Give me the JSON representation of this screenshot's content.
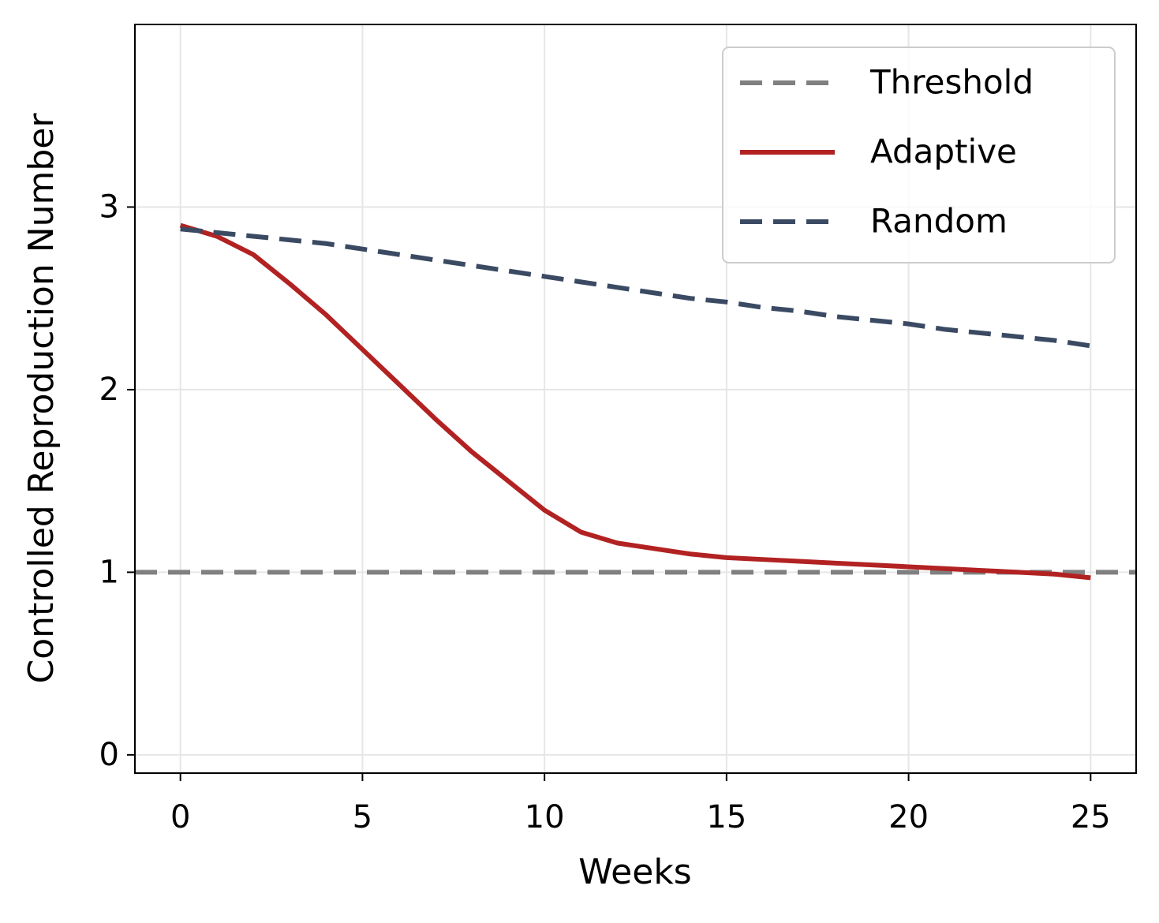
{
  "chart_data": {
    "type": "line",
    "x_label": "Weeks",
    "y_label": "Controlled Reproduction Number",
    "x": [
      0,
      1,
      2,
      3,
      4,
      5,
      6,
      7,
      8,
      9,
      10,
      11,
      12,
      13,
      14,
      15,
      16,
      17,
      18,
      19,
      20,
      21,
      22,
      23,
      24,
      25
    ],
    "series": [
      {
        "name": "Threshold",
        "color": "#808080",
        "style": "dashed",
        "value": 1
      },
      {
        "name": "Adaptive",
        "color": "#b22222",
        "style": "solid",
        "values": [
          2.9,
          2.84,
          2.74,
          2.58,
          2.41,
          2.22,
          2.03,
          1.84,
          1.66,
          1.5,
          1.34,
          1.22,
          1.16,
          1.13,
          1.1,
          1.08,
          1.07,
          1.06,
          1.05,
          1.04,
          1.03,
          1.02,
          1.01,
          1.0,
          0.99,
          0.97
        ]
      },
      {
        "name": "Random",
        "color": "#3b4a63",
        "style": "dashed",
        "values": [
          2.88,
          2.86,
          2.84,
          2.82,
          2.8,
          2.77,
          2.74,
          2.71,
          2.68,
          2.65,
          2.62,
          2.59,
          2.56,
          2.53,
          2.5,
          2.48,
          2.45,
          2.43,
          2.4,
          2.38,
          2.36,
          2.33,
          2.31,
          2.29,
          2.27,
          2.24
        ]
      }
    ],
    "xlim": [
      -1.25,
      26.25
    ],
    "xticks": [
      0,
      5,
      10,
      15,
      20,
      25
    ],
    "ylim": [
      -0.1,
      4
    ],
    "yticks": [
      0,
      1,
      2,
      3
    ],
    "grid": true,
    "legend": "upper right"
  }
}
